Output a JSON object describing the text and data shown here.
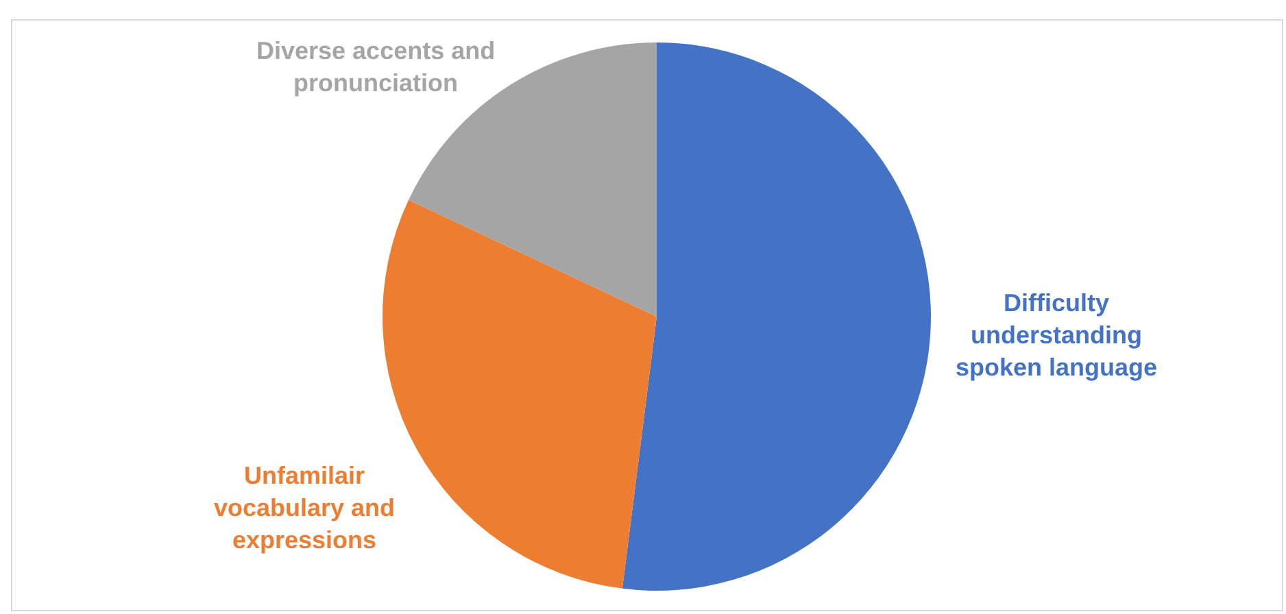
{
  "chart_data": {
    "type": "pie",
    "categories": [
      "Difficulty understanding spoken language",
      "Unfamilair vocabulary and expressions",
      "Diverse accents and pronunciation"
    ],
    "values": [
      52,
      30,
      18
    ],
    "colors": [
      "#4472c4",
      "#ed7d31",
      "#a5a5a5"
    ]
  }
}
